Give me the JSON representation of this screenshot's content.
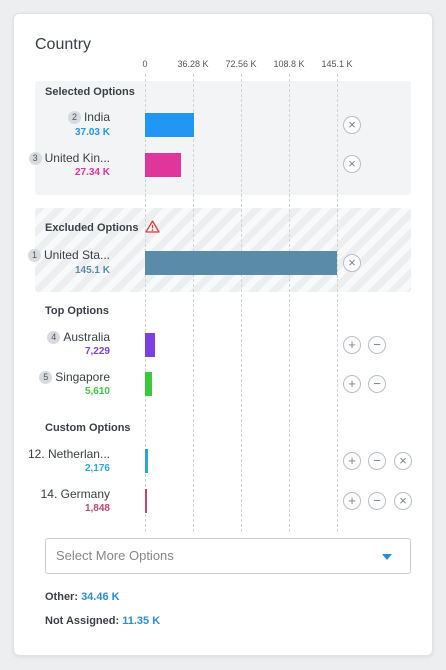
{
  "title": "Country",
  "axis_ticks": [
    "0",
    "36.28 K",
    "72.56 K",
    "108.8 K",
    "145.1 K"
  ],
  "sections": {
    "selected": "Selected Options",
    "excluded": "Excluded Options",
    "top": "Top Options",
    "custom": "Custom Options"
  },
  "max_value": 145100,
  "rows": {
    "india": {
      "badge": "2",
      "name": "India",
      "value_label": "37.03 K",
      "value": 37030,
      "color": "#2196f3"
    },
    "uk": {
      "badge": "3",
      "name": "United Kin...",
      "value_label": "27.34 K",
      "value": 27340,
      "color": "#e0359a"
    },
    "us": {
      "badge": "1",
      "name": "United Sta...",
      "value_label": "145.1 K",
      "value": 145100,
      "color": "#5a8ba8"
    },
    "australia": {
      "badge": "4",
      "name": "Australia",
      "value_label": "7,229",
      "value": 7229,
      "color": "#7b3fe4"
    },
    "singapore": {
      "badge": "5",
      "name": "Singapore",
      "value_label": "5,610",
      "value": 5610,
      "color": "#3bc93b"
    },
    "netherlands": {
      "name": "12. Netherlan...",
      "value_label": "2,176",
      "value": 2176,
      "color": "#29a8d8"
    },
    "germany": {
      "name": "14. Germany",
      "value_label": "1,848",
      "value": 1848,
      "color": "#c04a6c"
    }
  },
  "select_more": {
    "placeholder": "Select More Options"
  },
  "other": {
    "label": "Other:",
    "value": "34.46 K"
  },
  "not_assigned": {
    "label": "Not Assigned:",
    "value": "11.35 K"
  },
  "icons": {
    "remove": "close-icon",
    "add": "plus-icon",
    "exclude": "minus-icon",
    "warning": "warning-icon",
    "dropdown": "chevron-down-icon"
  }
}
